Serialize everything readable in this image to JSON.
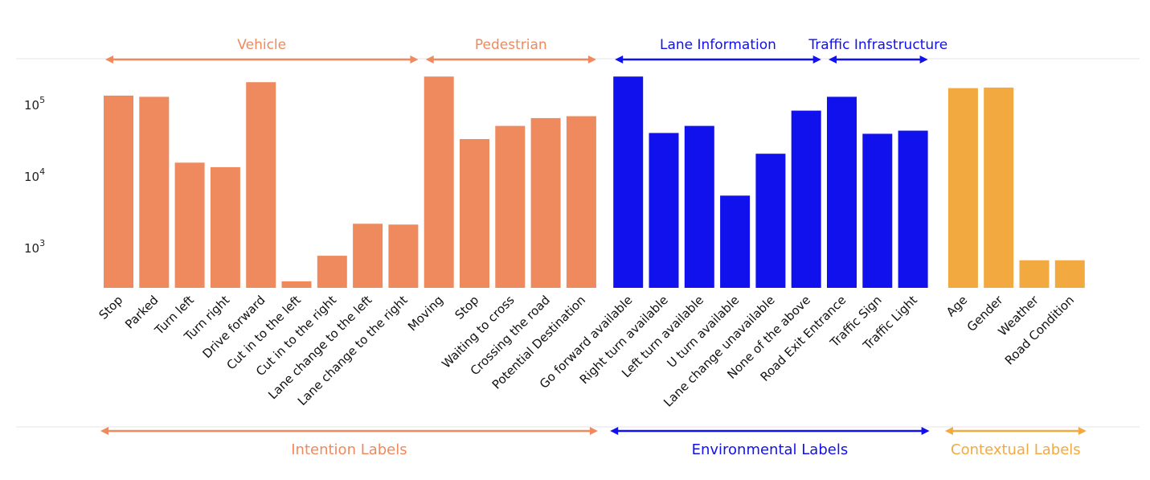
{
  "chart_data": {
    "type": "bar",
    "y_scale": "log",
    "ylim": [
      200,
      300000
    ],
    "yticks": [
      {
        "value": 1000,
        "base": "10",
        "exp": "3"
      },
      {
        "value": 10000,
        "base": "10",
        "exp": "4"
      },
      {
        "value": 100000,
        "base": "10",
        "exp": "5"
      }
    ],
    "colors": {
      "vehicle": "#EF895E",
      "environment": "#1111EE",
      "context": "#F2A940"
    },
    "categories": [
      {
        "label": "Stop",
        "value": 130000,
        "color": "#EF895E"
      },
      {
        "label": "Parked",
        "value": 125000,
        "color": "#EF895E"
      },
      {
        "label": "Turn left",
        "value": 15000,
        "color": "#EF895E"
      },
      {
        "label": "Turn right",
        "value": 13000,
        "color": "#EF895E"
      },
      {
        "label": "Drive forward",
        "value": 200000,
        "color": "#EF895E"
      },
      {
        "label": "Cut in to the left",
        "value": 330,
        "color": "#EF895E"
      },
      {
        "label": "Cut in to the right",
        "value": 750,
        "color": "#EF895E"
      },
      {
        "label": "Lane change to the left",
        "value": 2100,
        "color": "#EF895E"
      },
      {
        "label": "Lane change to the right",
        "value": 2050,
        "color": "#EF895E"
      },
      {
        "label": "Moving",
        "value": 240000,
        "color": "#EF895E"
      },
      {
        "label": "Stop",
        "value": 32000,
        "color": "#EF895E"
      },
      {
        "label": "Waiting to cross",
        "value": 49000,
        "color": "#EF895E"
      },
      {
        "label": "Crossing the road",
        "value": 63000,
        "color": "#EF895E"
      },
      {
        "label": "Potential Destination",
        "value": 67000,
        "color": "#EF895E"
      },
      {
        "label": "Go forward available",
        "value": 240000,
        "color": "#1111EE"
      },
      {
        "label": "Right turn available",
        "value": 39000,
        "color": "#1111EE"
      },
      {
        "label": "Left turn available",
        "value": 49000,
        "color": "#1111EE"
      },
      {
        "label": "U turn available",
        "value": 5200,
        "color": "#1111EE"
      },
      {
        "label": "Lane change unavailable",
        "value": 20000,
        "color": "#1111EE"
      },
      {
        "label": "None of the above",
        "value": 80000,
        "color": "#1111EE"
      },
      {
        "label": "Road Exit Entrance",
        "value": 125000,
        "color": "#1111EE"
      },
      {
        "label": "Traffic Sign",
        "value": 38000,
        "color": "#1111EE"
      },
      {
        "label": "Traffic Light",
        "value": 42000,
        "color": "#1111EE"
      },
      {
        "label": "Age",
        "value": 165000,
        "color": "#F2A940"
      },
      {
        "label": "Gender",
        "value": 168000,
        "color": "#F2A940"
      },
      {
        "label": "Weather",
        "value": 650,
        "color": "#F2A940"
      },
      {
        "label": "Road Condition",
        "value": 650,
        "color": "#F2A940"
      }
    ],
    "top_groups": [
      {
        "label": "Vehicle",
        "color": "#EF895E",
        "from": 0,
        "to": 8
      },
      {
        "label": "Pedestrian",
        "color": "#EF895E",
        "from": 9,
        "to": 13
      },
      {
        "label": "Lane Information",
        "color": "#1111EE",
        "from": 14,
        "to": 19
      },
      {
        "label": "Traffic Infrastructure",
        "color": "#1111EE",
        "from": 20,
        "to": 22
      }
    ],
    "bottom_groups": [
      {
        "label": "Intention Labels",
        "color": "#EF895E",
        "from": 0,
        "to": 13
      },
      {
        "label": "Environmental Labels",
        "color": "#1111EE",
        "from": 14,
        "to": 22
      },
      {
        "label": "Contextual Labels",
        "color": "#F2A940",
        "from": 23,
        "to": 26
      }
    ]
  }
}
